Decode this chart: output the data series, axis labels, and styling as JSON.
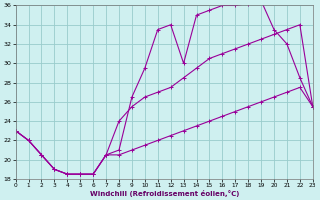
{
  "bg_color": "#cff0f0",
  "grid_color": "#99cccc",
  "line_color": "#990099",
  "xlabel": "Windchill (Refroidissement éolien,°C)",
  "xlim": [
    0,
    23
  ],
  "ylim": [
    18,
    36
  ],
  "xticks": [
    0,
    1,
    2,
    3,
    4,
    5,
    6,
    7,
    8,
    9,
    10,
    11,
    12,
    13,
    14,
    15,
    16,
    17,
    18,
    19,
    20,
    21,
    22,
    23
  ],
  "yticks": [
    18,
    20,
    22,
    24,
    26,
    28,
    30,
    32,
    34,
    36
  ],
  "line1_x": [
    0,
    1,
    2,
    3,
    4,
    5,
    6,
    7,
    8,
    9,
    10,
    11,
    12,
    13,
    14,
    15,
    16,
    17,
    18,
    19,
    20,
    21,
    22,
    23
  ],
  "line1_y": [
    23.0,
    22.0,
    20.5,
    19.0,
    18.5,
    18.5,
    18.5,
    20.5,
    21.0,
    26.5,
    29.5,
    33.5,
    34.0,
    30.0,
    35.0,
    35.5,
    36.0,
    36.0,
    36.2,
    36.5,
    33.5,
    32.0,
    28.5,
    25.5
  ],
  "line2_x": [
    0,
    1,
    2,
    3,
    4,
    5,
    6,
    7,
    8,
    9,
    10,
    11,
    12,
    13,
    14,
    15,
    16,
    17,
    18,
    19,
    20,
    21,
    22,
    23
  ],
  "line2_y": [
    23.0,
    22.0,
    20.5,
    19.0,
    18.5,
    18.5,
    18.5,
    20.5,
    24.0,
    25.5,
    26.5,
    27.0,
    27.5,
    28.5,
    29.5,
    30.5,
    31.0,
    31.5,
    32.0,
    32.5,
    33.0,
    33.5,
    34.0,
    25.5
  ],
  "line3_x": [
    0,
    1,
    2,
    3,
    4,
    5,
    6,
    7,
    8,
    9,
    10,
    11,
    12,
    13,
    14,
    15,
    16,
    17,
    18,
    19,
    20,
    21,
    22,
    23
  ],
  "line3_y": [
    23.0,
    22.0,
    20.5,
    19.0,
    18.5,
    18.5,
    18.5,
    20.5,
    20.5,
    21.0,
    21.5,
    22.0,
    22.5,
    23.0,
    23.5,
    24.0,
    24.5,
    25.0,
    25.5,
    26.0,
    26.5,
    27.0,
    27.5,
    25.5
  ]
}
